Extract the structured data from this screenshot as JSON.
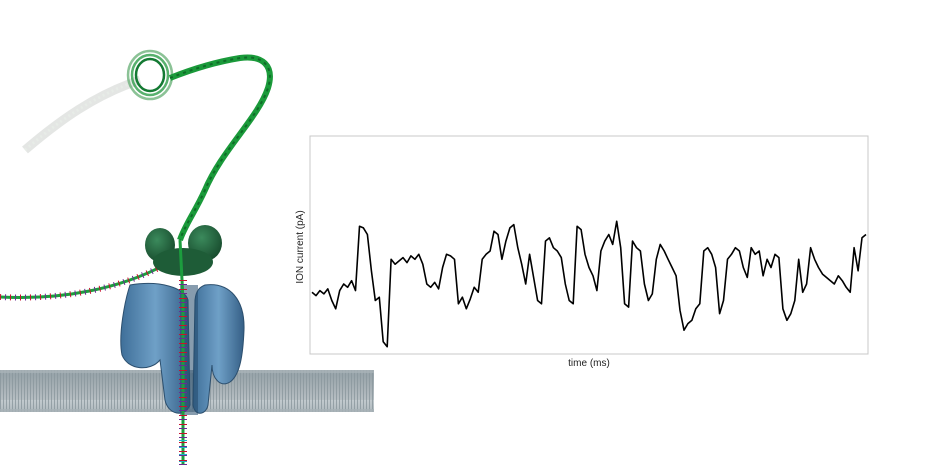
{
  "figure": {
    "illustration_icon": "nanopore-dna-sequencing-icon"
  },
  "chart_data": {
    "type": "line",
    "xlabel": "time (ms)",
    "ylabel": "ION current (pA)",
    "grid": false,
    "x_ticks": [],
    "y_ticks": [],
    "x": [
      0,
      1,
      2,
      3,
      4,
      5,
      6,
      7,
      8,
      9,
      10,
      11,
      12,
      13,
      14,
      15,
      16,
      17,
      18,
      19,
      20,
      21,
      22,
      23,
      24,
      25,
      26,
      27,
      28,
      29,
      30,
      31,
      32,
      33,
      34,
      35,
      36,
      37,
      38,
      39,
      40,
      41,
      42,
      43,
      44,
      45,
      46,
      47,
      48,
      49,
      50,
      51,
      52,
      53,
      54,
      55,
      56,
      57,
      58,
      59,
      60,
      61,
      62,
      63,
      64,
      65,
      66,
      67,
      68,
      69,
      70,
      71,
      72,
      73,
      74,
      75,
      76,
      77,
      78,
      79,
      80,
      81,
      82,
      83,
      84,
      85,
      86,
      87,
      88,
      89,
      90,
      91,
      92,
      93,
      94,
      95,
      96,
      97,
      98,
      99,
      100,
      101,
      102,
      103,
      104,
      105,
      106,
      107,
      108,
      109,
      110,
      111,
      112,
      113,
      114,
      115,
      116,
      117,
      118,
      119,
      120,
      121,
      122,
      123,
      124,
      125,
      126,
      127,
      128,
      129,
      130,
      131,
      132,
      133,
      134,
      135,
      136,
      137,
      138,
      139,
      140
    ],
    "series": [
      {
        "color": "#000000",
        "values": [
          0.35,
          0.33,
          0.36,
          0.34,
          0.37,
          0.3,
          0.25,
          0.36,
          0.4,
          0.38,
          0.42,
          0.36,
          0.75,
          0.74,
          0.7,
          0.48,
          0.3,
          0.32,
          0.05,
          0.02,
          0.55,
          0.52,
          0.54,
          0.56,
          0.53,
          0.57,
          0.55,
          0.58,
          0.52,
          0.4,
          0.38,
          0.41,
          0.37,
          0.5,
          0.58,
          0.57,
          0.55,
          0.28,
          0.32,
          0.25,
          0.31,
          0.38,
          0.35,
          0.55,
          0.58,
          0.6,
          0.72,
          0.7,
          0.55,
          0.66,
          0.74,
          0.76,
          0.62,
          0.52,
          0.4,
          0.58,
          0.44,
          0.3,
          0.28,
          0.66,
          0.68,
          0.62,
          0.6,
          0.56,
          0.4,
          0.3,
          0.28,
          0.75,
          0.73,
          0.58,
          0.5,
          0.45,
          0.36,
          0.6,
          0.66,
          0.7,
          0.64,
          0.78,
          0.62,
          0.28,
          0.26,
          0.66,
          0.62,
          0.6,
          0.4,
          0.3,
          0.34,
          0.55,
          0.64,
          0.6,
          0.55,
          0.5,
          0.45,
          0.24,
          0.12,
          0.16,
          0.18,
          0.25,
          0.28,
          0.6,
          0.62,
          0.58,
          0.5,
          0.22,
          0.3,
          0.55,
          0.58,
          0.62,
          0.6,
          0.5,
          0.44,
          0.62,
          0.58,
          0.6,
          0.45,
          0.55,
          0.5,
          0.58,
          0.56,
          0.25,
          0.18,
          0.22,
          0.3,
          0.55,
          0.35,
          0.4,
          0.62,
          0.55,
          0.5,
          0.46,
          0.44,
          0.42,
          0.4,
          0.45,
          0.42,
          0.38,
          0.35,
          0.62,
          0.48,
          0.68,
          0.7
        ]
      }
    ]
  }
}
